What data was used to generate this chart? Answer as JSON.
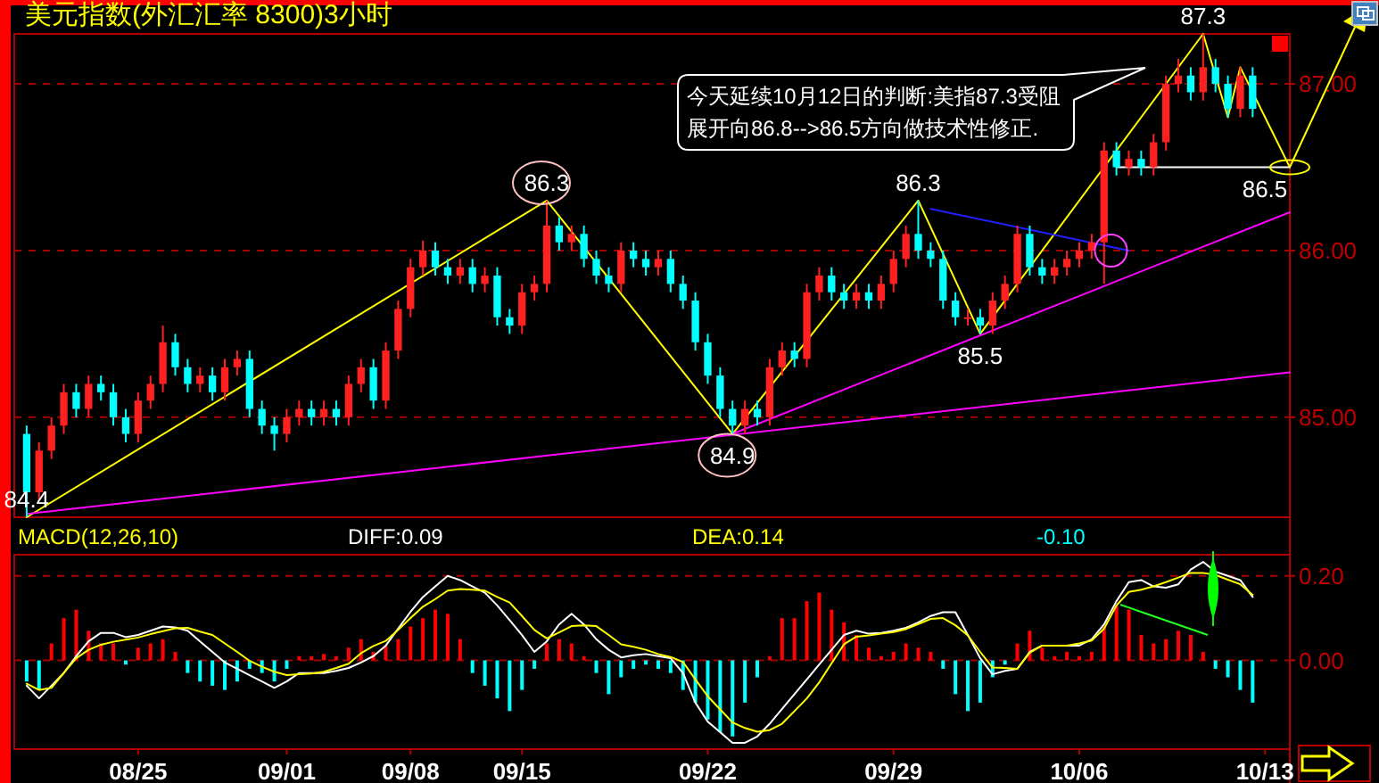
{
  "chart_data": [
    {
      "type": "candlestick",
      "title": "美元指数(外汇汇率 8300)3小时",
      "categories": [
        null,
        null,
        null,
        null,
        null,
        null,
        null,
        null,
        null,
        null,
        null,
        null,
        null,
        null,
        null,
        null,
        null,
        null,
        null,
        null,
        null,
        null,
        null,
        null,
        null,
        null,
        null,
        null,
        null,
        null,
        null,
        null,
        null,
        null,
        null,
        null,
        null,
        null,
        null,
        null,
        null,
        null,
        null,
        null,
        null,
        null,
        null,
        null,
        null,
        null,
        null,
        null,
        null,
        null,
        null,
        null,
        null,
        null,
        null,
        null,
        null,
        null,
        null,
        null,
        null,
        null,
        null,
        null,
        null,
        null,
        null,
        null,
        null,
        null,
        null,
        null,
        null,
        null,
        null,
        null,
        null,
        null,
        null,
        null,
        null,
        null,
        null,
        null,
        null,
        null,
        null,
        null,
        null,
        null,
        null,
        null,
        null,
        null,
        null,
        null,
        null,
        null,
        null
      ],
      "ohlc": [
        [
          84.9,
          84.95,
          84.4,
          84.55
        ],
        [
          84.55,
          84.85,
          84.5,
          84.8
        ],
        [
          84.8,
          85.0,
          84.75,
          84.95
        ],
        [
          84.95,
          85.2,
          84.9,
          85.15
        ],
        [
          85.15,
          85.2,
          85.0,
          85.05
        ],
        [
          85.05,
          85.25,
          85.0,
          85.2
        ],
        [
          85.2,
          85.25,
          85.1,
          85.15
        ],
        [
          85.15,
          85.2,
          84.95,
          85.0
        ],
        [
          85.0,
          85.05,
          84.85,
          84.9
        ],
        [
          84.9,
          85.15,
          84.85,
          85.1
        ],
        [
          85.1,
          85.25,
          85.05,
          85.2
        ],
        [
          85.2,
          85.55,
          85.15,
          85.45
        ],
        [
          85.45,
          85.5,
          85.25,
          85.3
        ],
        [
          85.3,
          85.35,
          85.15,
          85.2
        ],
        [
          85.2,
          85.3,
          85.15,
          85.25
        ],
        [
          85.25,
          85.3,
          85.1,
          85.15
        ],
        [
          85.15,
          85.35,
          85.1,
          85.3
        ],
        [
          85.3,
          85.4,
          85.25,
          85.35
        ],
        [
          85.35,
          85.4,
          85.0,
          85.05
        ],
        [
          85.05,
          85.1,
          84.9,
          84.95
        ],
        [
          84.95,
          85.0,
          84.8,
          84.9
        ],
        [
          84.9,
          85.05,
          84.85,
          85.0
        ],
        [
          85.0,
          85.1,
          84.95,
          85.05
        ],
        [
          85.05,
          85.1,
          84.95,
          85.0
        ],
        [
          85.0,
          85.1,
          84.95,
          85.05
        ],
        [
          85.05,
          85.1,
          84.95,
          85.0
        ],
        [
          85.0,
          85.25,
          84.95,
          85.2
        ],
        [
          85.2,
          85.35,
          85.15,
          85.3
        ],
        [
          85.3,
          85.35,
          85.05,
          85.1
        ],
        [
          85.1,
          85.45,
          85.05,
          85.4
        ],
        [
          85.4,
          85.7,
          85.35,
          85.65
        ],
        [
          85.65,
          85.95,
          85.6,
          85.9
        ],
        [
          85.9,
          86.06,
          85.85,
          86.0
        ],
        [
          86.0,
          86.05,
          85.85,
          85.9
        ],
        [
          85.9,
          85.95,
          85.8,
          85.85
        ],
        [
          85.85,
          85.95,
          85.8,
          85.9
        ],
        [
          85.9,
          85.95,
          85.75,
          85.8
        ],
        [
          85.8,
          85.9,
          85.75,
          85.85
        ],
        [
          85.85,
          85.9,
          85.55,
          85.6
        ],
        [
          85.6,
          85.65,
          85.5,
          85.55
        ],
        [
          85.55,
          85.8,
          85.5,
          85.75
        ],
        [
          85.75,
          85.85,
          85.7,
          85.8
        ],
        [
          85.8,
          86.3,
          85.75,
          86.15
        ],
        [
          86.15,
          86.2,
          86.0,
          86.05
        ],
        [
          86.05,
          86.15,
          86.0,
          86.1
        ],
        [
          86.1,
          86.15,
          85.9,
          85.95
        ],
        [
          85.95,
          86.0,
          85.8,
          85.85
        ],
        [
          85.85,
          85.9,
          85.75,
          85.8
        ],
        [
          85.8,
          86.05,
          85.75,
          86.0
        ],
        [
          86.0,
          86.05,
          85.9,
          85.95
        ],
        [
          85.95,
          86.0,
          85.85,
          85.9
        ],
        [
          85.9,
          86.0,
          85.85,
          85.95
        ],
        [
          85.95,
          86.0,
          85.75,
          85.8
        ],
        [
          85.8,
          85.85,
          85.65,
          85.7
        ],
        [
          85.7,
          85.75,
          85.4,
          85.45
        ],
        [
          85.45,
          85.5,
          85.2,
          85.25
        ],
        [
          85.25,
          85.3,
          85.0,
          85.05
        ],
        [
          85.05,
          85.1,
          84.9,
          84.95
        ],
        [
          84.95,
          85.1,
          84.9,
          85.05
        ],
        [
          85.05,
          85.1,
          84.95,
          85.0
        ],
        [
          85.0,
          85.35,
          84.95,
          85.3
        ],
        [
          85.3,
          85.45,
          85.25,
          85.4
        ],
        [
          85.4,
          85.45,
          85.3,
          85.35
        ],
        [
          85.35,
          85.8,
          85.3,
          85.75
        ],
        [
          85.75,
          85.9,
          85.7,
          85.85
        ],
        [
          85.85,
          85.9,
          85.7,
          85.75
        ],
        [
          85.75,
          85.8,
          85.65,
          85.7
        ],
        [
          85.7,
          85.8,
          85.65,
          85.75
        ],
        [
          85.75,
          85.8,
          85.65,
          85.7
        ],
        [
          85.7,
          85.85,
          85.65,
          85.8
        ],
        [
          85.8,
          86.0,
          85.75,
          85.95
        ],
        [
          85.95,
          86.15,
          85.9,
          86.1
        ],
        [
          86.1,
          86.3,
          85.95,
          86.0
        ],
        [
          86.0,
          86.05,
          85.9,
          85.95
        ],
        [
          85.95,
          86.0,
          85.65,
          85.7
        ],
        [
          85.7,
          85.75,
          85.55,
          85.6
        ],
        [
          85.6,
          85.65,
          85.55,
          85.6
        ],
        [
          85.6,
          85.65,
          85.5,
          85.55
        ],
        [
          85.55,
          85.75,
          85.5,
          85.7
        ],
        [
          85.7,
          85.85,
          85.65,
          85.8
        ],
        [
          85.8,
          86.15,
          85.75,
          86.1
        ],
        [
          86.1,
          86.15,
          85.85,
          85.9
        ],
        [
          85.9,
          85.95,
          85.8,
          85.85
        ],
        [
          85.85,
          85.95,
          85.8,
          85.9
        ],
        [
          85.9,
          86.0,
          85.85,
          85.95
        ],
        [
          85.95,
          86.05,
          85.9,
          86.0
        ],
        [
          86.0,
          86.1,
          85.95,
          86.05
        ],
        [
          86.05,
          86.65,
          85.8,
          86.6
        ],
        [
          86.6,
          86.65,
          86.45,
          86.5
        ],
        [
          86.5,
          86.6,
          86.45,
          86.55
        ],
        [
          86.55,
          86.6,
          86.45,
          86.5
        ],
        [
          86.5,
          86.7,
          86.45,
          86.65
        ],
        [
          86.65,
          87.05,
          86.6,
          87.0
        ],
        [
          87.0,
          87.15,
          86.95,
          87.05
        ],
        [
          87.05,
          87.1,
          86.9,
          86.95
        ],
        [
          86.95,
          87.3,
          86.9,
          87.1
        ],
        [
          87.1,
          87.15,
          86.95,
          87.0
        ],
        [
          87.0,
          87.05,
          86.8,
          86.85
        ],
        [
          86.85,
          87.1,
          86.8,
          87.05
        ],
        [
          87.05,
          87.1,
          86.8,
          86.85
        ],
        null,
        null,
        null
      ],
      "series": [
        {
          "type": "line",
          "color": "#ffff00",
          "values": [
            84.4,
            null,
            null,
            null,
            null,
            null,
            null,
            null,
            null,
            null,
            null,
            null,
            null,
            null,
            null,
            null,
            null,
            null,
            null,
            null,
            null,
            null,
            null,
            null,
            null,
            null,
            null,
            null,
            null,
            null,
            null,
            null,
            null,
            null,
            null,
            null,
            null,
            null,
            null,
            null,
            null,
            null,
            86.3,
            null,
            null,
            null,
            null,
            null,
            null,
            null,
            null,
            null,
            null,
            null,
            null,
            null,
            null,
            84.9,
            null,
            null,
            null,
            null,
            null,
            null,
            null,
            null,
            null,
            null,
            null,
            null,
            null,
            null,
            86.3,
            null,
            null,
            null,
            null,
            85.5,
            null,
            null,
            null,
            null,
            null,
            null,
            null,
            null,
            null,
            null,
            null,
            null,
            null,
            null,
            null,
            null,
            null,
            87.3,
            null,
            86.8,
            87.1,
            null,
            null,
            null,
            86.5
          ]
        },
        {
          "type": "line",
          "color": "#ff00ff",
          "values": [
            84.42,
            null,
            null,
            null,
            null,
            null,
            null,
            null,
            null,
            null,
            null,
            null,
            null,
            null,
            null,
            null,
            null,
            null,
            null,
            null,
            null,
            null,
            null,
            null,
            null,
            null,
            null,
            null,
            null,
            null,
            null,
            null,
            null,
            null,
            null,
            null,
            null,
            null,
            null,
            null,
            null,
            null,
            null,
            null,
            null,
            null,
            null,
            null,
            null,
            null,
            null,
            null,
            null,
            null,
            null,
            null,
            null,
            null,
            null,
            null,
            null,
            null,
            null,
            null,
            null,
            null,
            null,
            null,
            null,
            null,
            null,
            null,
            null,
            null,
            null,
            null,
            null,
            null,
            null,
            null,
            null,
            null,
            null,
            null,
            null,
            null,
            null,
            null,
            null,
            null,
            null,
            null,
            null,
            null,
            null,
            null,
            null,
            null,
            null,
            null,
            null,
            null,
            85.27
          ]
        },
        {
          "type": "line",
          "color": "#ff00ff",
          "values": [
            null,
            null,
            null,
            null,
            null,
            null,
            null,
            null,
            null,
            null,
            null,
            null,
            null,
            null,
            null,
            null,
            null,
            null,
            null,
            null,
            null,
            null,
            null,
            null,
            null,
            null,
            null,
            null,
            null,
            null,
            null,
            null,
            null,
            null,
            null,
            null,
            null,
            null,
            null,
            null,
            null,
            null,
            null,
            null,
            null,
            null,
            null,
            null,
            null,
            null,
            null,
            null,
            null,
            null,
            null,
            null,
            null,
            84.9,
            null,
            null,
            null,
            null,
            null,
            null,
            null,
            null,
            null,
            null,
            null,
            null,
            null,
            null,
            null,
            null,
            null,
            null,
            null,
            null,
            null,
            null,
            null,
            null,
            null,
            null,
            null,
            null,
            null,
            null,
            null,
            null,
            null,
            null,
            null,
            null,
            null,
            null,
            null,
            null,
            null,
            null,
            null,
            null,
            86.23
          ]
        },
        {
          "type": "line",
          "color": "#2020ff",
          "values": [
            null,
            null,
            null,
            null,
            null,
            null,
            null,
            null,
            null,
            null,
            null,
            null,
            null,
            null,
            null,
            null,
            null,
            null,
            null,
            null,
            null,
            null,
            null,
            null,
            null,
            null,
            null,
            null,
            null,
            null,
            null,
            null,
            null,
            null,
            null,
            null,
            null,
            null,
            null,
            null,
            null,
            null,
            null,
            null,
            null,
            null,
            null,
            null,
            null,
            null,
            null,
            null,
            null,
            null,
            null,
            null,
            null,
            null,
            null,
            null,
            null,
            null,
            null,
            null,
            null,
            null,
            null,
            null,
            null,
            null,
            null,
            null,
            null,
            86.25,
            null,
            null,
            null,
            null,
            null,
            null,
            null,
            null,
            null,
            null,
            null,
            null,
            null,
            null,
            null,
            86.0,
            null,
            null,
            null,
            null,
            null,
            null,
            null,
            null,
            null,
            null,
            null,
            null,
            null
          ]
        },
        {
          "type": "line",
          "color": "#ffffff",
          "values": [
            null,
            null,
            null,
            null,
            null,
            null,
            null,
            null,
            null,
            null,
            null,
            null,
            null,
            null,
            null,
            null,
            null,
            null,
            null,
            null,
            null,
            null,
            null,
            null,
            null,
            null,
            null,
            null,
            null,
            null,
            null,
            null,
            null,
            null,
            null,
            null,
            null,
            null,
            null,
            null,
            null,
            null,
            null,
            null,
            null,
            null,
            null,
            null,
            null,
            null,
            null,
            null,
            null,
            null,
            null,
            null,
            null,
            null,
            null,
            null,
            null,
            null,
            null,
            null,
            null,
            null,
            null,
            null,
            null,
            null,
            null,
            null,
            null,
            null,
            null,
            null,
            null,
            null,
            null,
            null,
            null,
            null,
            null,
            null,
            null,
            null,
            null,
            null,
            86.5,
            null,
            null,
            null,
            null,
            null,
            null,
            null,
            null,
            null,
            null,
            null,
            null,
            null,
            86.5
          ]
        }
      ],
      "annotations": [
        {
          "text": "84.4",
          "y": 84.4
        },
        {
          "text": "86.3",
          "y": 86.3
        },
        {
          "text": "84.9",
          "y": 84.9
        },
        {
          "text": "86.3",
          "y": 86.3
        },
        {
          "text": "85.5",
          "y": 85.5
        },
        {
          "text": "87.3",
          "y": 87.3
        },
        {
          "text": "86.5",
          "y": 86.5
        },
        "今天延续10月12日的判断:美指87.3受阻",
        "展开向86.8-->86.5方向做技术性修正."
      ],
      "ylim": [
        84.4,
        87.3
      ],
      "yticks": [
        {
          "value": 85,
          "label": "85.00"
        },
        {
          "value": 86,
          "label": "86.00"
        },
        {
          "value": 87,
          "label": "87.00"
        }
      ],
      "grid": "y",
      "tick_labels": "y"
    },
    {
      "type": "bar",
      "title": "MACD(12,26,10)",
      "categories": [
        null,
        null,
        null,
        null,
        null,
        null,
        null,
        null,
        null,
        "08/25",
        null,
        null,
        null,
        null,
        null,
        null,
        null,
        null,
        null,
        null,
        null,
        "09/01",
        null,
        null,
        null,
        null,
        null,
        null,
        null,
        null,
        null,
        "09/08",
        null,
        null,
        null,
        null,
        null,
        null,
        null,
        null,
        "09/15",
        null,
        null,
        null,
        null,
        null,
        null,
        null,
        null,
        null,
        null,
        null,
        null,
        null,
        null,
        "09/22",
        null,
        null,
        null,
        null,
        null,
        null,
        null,
        null,
        null,
        null,
        null,
        null,
        null,
        null,
        "09/29",
        null,
        null,
        null,
        null,
        null,
        null,
        null,
        null,
        null,
        null,
        null,
        null,
        null,
        null,
        "10/06",
        null,
        null,
        null,
        null,
        null,
        null,
        null,
        null,
        null,
        null,
        null,
        null,
        null,
        null,
        "10/13",
        null,
        null
      ],
      "series": [
        {
          "type": "bar",
          "color": "#ff0000",
          "values": [
            null,
            null,
            0.04,
            0.1,
            0.12,
            0.07,
            0.04,
            0.04,
            null,
            0.03,
            0.04,
            0.05,
            0.02,
            null,
            null,
            null,
            null,
            null,
            null,
            null,
            null,
            null,
            0.01,
            0.01,
            0.015,
            0.01,
            0.03,
            0.05,
            0.02,
            0.035,
            0.05,
            0.08,
            0.1,
            0.12,
            0.11,
            0.05,
            null,
            null,
            null,
            null,
            null,
            null,
            0.04,
            0.05,
            0.04,
            0.01,
            null,
            null,
            null,
            null,
            null,
            null,
            null,
            null,
            null,
            null,
            null,
            null,
            null,
            null,
            0.01,
            0.1,
            0.1,
            0.14,
            0.16,
            0.12,
            0.09,
            0.06,
            0.03,
            0.01,
            0.02,
            0.04,
            0.03,
            0.02,
            null,
            null,
            null,
            null,
            null,
            null,
            0.04,
            0.07,
            0.03,
            0.01,
            0.02,
            0.01,
            0.02,
            0.08,
            0.13,
            0.12,
            0.06,
            0.04,
            0.05,
            0.07,
            0.06,
            0.02,
            null,
            null,
            null,
            null,
            null,
            null,
            null
          ]
        },
        {
          "type": "line",
          "name": "DIFF:0.09",
          "color": "#ffffff",
          "values": [
            -0.06,
            -0.09,
            -0.06,
            -0.03,
            0.01,
            0.045,
            0.065,
            0.065,
            0.055,
            0.06,
            0.07,
            0.08,
            0.078,
            0.07,
            0.045,
            0.02,
            -0.005,
            -0.02,
            -0.035,
            -0.05,
            -0.065,
            -0.05,
            -0.03,
            -0.03,
            -0.03,
            -0.025,
            -0.018,
            -0.005,
            0.01,
            0.035,
            0.075,
            0.115,
            0.15,
            0.175,
            0.2,
            0.19,
            0.175,
            0.16,
            0.13,
            0.095,
            0.06,
            0.02,
            0.045,
            0.085,
            0.11,
            0.085,
            0.05,
            0.025,
            0.007,
            0.012,
            0.015,
            0.01,
            0.005,
            -0.03,
            -0.1,
            -0.145,
            -0.17,
            -0.195,
            -0.195,
            -0.18,
            -0.15,
            -0.115,
            -0.08,
            -0.045,
            -0.01,
            0.025,
            0.06,
            0.07,
            0.063,
            0.065,
            0.07,
            0.077,
            0.09,
            0.105,
            0.114,
            0.114,
            0.06,
            0.005,
            -0.033,
            -0.025,
            -0.02,
            0.02,
            0.035,
            0.035,
            0.035,
            0.035,
            0.05,
            0.085,
            0.14,
            0.185,
            0.19,
            0.175,
            0.172,
            0.18,
            0.215,
            0.233,
            0.21,
            0.2,
            0.19,
            0.15,
            null,
            null,
            null
          ]
        },
        {
          "type": "line",
          "name": "DEA:0.14",
          "color": "#ffff00",
          "values": [
            -0.055,
            -0.07,
            -0.065,
            -0.03,
            0.005,
            0.025,
            0.037,
            0.044,
            0.049,
            0.054,
            0.062,
            0.069,
            0.076,
            0.077,
            0.068,
            0.06,
            0.04,
            0.02,
            -0.001,
            -0.015,
            -0.027,
            -0.035,
            -0.033,
            -0.031,
            -0.027,
            -0.018,
            -0.008,
            0.017,
            0.034,
            0.046,
            0.072,
            0.1,
            0.127,
            0.145,
            0.165,
            0.169,
            0.167,
            0.165,
            0.15,
            0.137,
            0.105,
            0.072,
            0.052,
            0.066,
            0.081,
            0.083,
            0.081,
            0.06,
            0.038,
            0.032,
            0.025,
            0.015,
            0.008,
            -0.004,
            -0.045,
            -0.085,
            -0.116,
            -0.147,
            -0.16,
            -0.169,
            -0.165,
            -0.15,
            -0.12,
            -0.09,
            -0.052,
            -0.007,
            0.038,
            0.056,
            0.059,
            0.063,
            0.067,
            0.074,
            0.086,
            0.098,
            0.1,
            0.083,
            0.059,
            0.02,
            -0.017,
            -0.018,
            -0.02,
            0.018,
            0.035,
            0.035,
            0.035,
            0.04,
            0.047,
            0.075,
            0.13,
            0.162,
            0.167,
            0.175,
            0.185,
            0.196,
            0.207,
            0.207,
            0.202,
            0.191,
            0.18,
            0.155,
            null,
            null,
            null
          ]
        },
        {
          "type": "bar",
          "name": "-0.10",
          "color": "#00ffff",
          "values": [
            -0.05,
            -0.07,
            null,
            null,
            null,
            null,
            null,
            null,
            -0.01,
            null,
            null,
            null,
            null,
            -0.03,
            -0.05,
            -0.06,
            -0.07,
            -0.05,
            -0.02,
            -0.03,
            -0.05,
            -0.02,
            null,
            null,
            null,
            null,
            null,
            null,
            null,
            null,
            null,
            null,
            null,
            null,
            null,
            null,
            -0.03,
            -0.06,
            -0.09,
            -0.12,
            -0.07,
            -0.02,
            null,
            null,
            null,
            null,
            -0.03,
            -0.08,
            -0.04,
            -0.02,
            -0.01,
            -0.02,
            -0.03,
            -0.07,
            -0.1,
            -0.14,
            -0.17,
            -0.18,
            -0.1,
            -0.04,
            null,
            null,
            null,
            null,
            null,
            null,
            null,
            null,
            null,
            null,
            null,
            null,
            null,
            null,
            -0.02,
            -0.08,
            -0.12,
            -0.1,
            -0.04,
            -0.01,
            null,
            null,
            null,
            null,
            null,
            null,
            null,
            null,
            null,
            null,
            null,
            null,
            null,
            null,
            null,
            null,
            -0.02,
            -0.04,
            -0.07,
            -0.1,
            null,
            null,
            null
          ]
        }
      ],
      "ylim": [
        -0.21,
        0.25
      ],
      "yticks": [
        {
          "value": 0,
          "label": "0.00"
        },
        {
          "value": 0.2,
          "label": "0.20"
        }
      ],
      "grid": "y",
      "legend": "top"
    }
  ]
}
